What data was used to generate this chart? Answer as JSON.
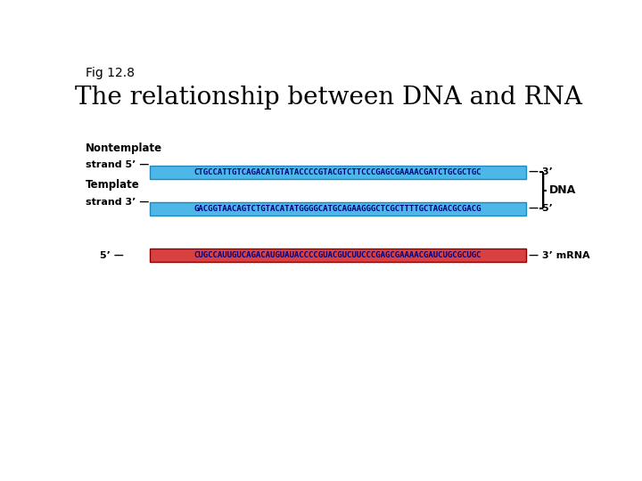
{
  "fig_label": "Fig 12.8",
  "title": "The relationship between DNA and RNA",
  "title_fontsize": 20,
  "fig_label_fontsize": 10,
  "background_color": "#ffffff",
  "nontemplate_label1": "Nontemplate",
  "nontemplate_label2": "strand 5’ —",
  "nontemplate_seq": "CTGCCATTGTCAGACATGTATACCCCGTACGTCTTCCCGAGCGAAAACGATCTGCGCTGC",
  "nontemplate_end": "— 3’",
  "nontemplate_bg": "#4db8e8",
  "nontemplate_text_color": "#000080",
  "template_label1": "Template",
  "template_label2": "strand 3’ —",
  "template_seq": "GACGGTAACAGTCTGTACATATGGGGCATGCAGAAGGGCTCGCTTTTGCTAGACGCGACG",
  "template_end": "— 5’",
  "template_bg": "#4db8e8",
  "template_text_color": "#000080",
  "dna_label": "DNA",
  "mrna_prefix": "5’ —",
  "mrna_seq": "CUGCCAUUGUCAGACAUGUAUACCCCGUACGUCUUCCCGAGCGAAAACGAUCUGCGCUGC",
  "mrna_end": "— 3’ mRNA",
  "mrna_bg": "#d94040",
  "mrna_text_color": "#000080",
  "seq_fontsize": 6.5,
  "label_fontsize": 8.5,
  "strand_label_fontsize": 8.0,
  "dna_label_fontsize": 9.0
}
